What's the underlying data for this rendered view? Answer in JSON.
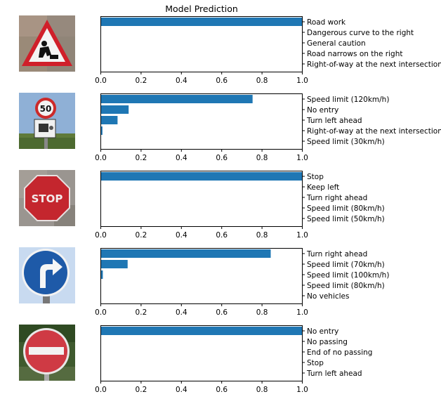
{
  "title": "Model Prediction",
  "chart_data": [
    {
      "type": "bar",
      "orientation": "horizontal",
      "image_icon": "road-work-sign-icon",
      "categories": [
        "Road work",
        "Dangerous curve to the right",
        "General caution",
        "Road narrows on the right",
        "Right-of-way at the next intersection"
      ],
      "values": [
        1.0,
        0.0,
        0.0,
        0.0,
        0.0
      ],
      "xlim": [
        0,
        1.0
      ],
      "xticks": [
        "0.0",
        "0.2",
        "0.4",
        "0.6",
        "0.8",
        "1.0"
      ]
    },
    {
      "type": "bar",
      "orientation": "horizontal",
      "image_icon": "speed-limit-50-sign-icon",
      "categories": [
        "Speed limit (120km/h)",
        "No entry",
        "Turn left ahead",
        "Right-of-way at the next intersection",
        "Speed limit (30km/h)"
      ],
      "values": [
        0.755,
        0.14,
        0.085,
        0.01,
        0.003
      ],
      "xlim": [
        0,
        1.0
      ],
      "xticks": [
        "0.0",
        "0.2",
        "0.4",
        "0.6",
        "0.8",
        "1.0"
      ]
    },
    {
      "type": "bar",
      "orientation": "horizontal",
      "image_icon": "stop-sign-icon",
      "categories": [
        "Stop",
        "Keep left",
        "Turn right ahead",
        "Speed limit (80km/h)",
        "Speed limit (50km/h)"
      ],
      "values": [
        1.0,
        0.0,
        0.0,
        0.0,
        0.0
      ],
      "xlim": [
        0,
        1.0
      ],
      "xticks": [
        "0.0",
        "0.2",
        "0.4",
        "0.6",
        "0.8",
        "1.0"
      ]
    },
    {
      "type": "bar",
      "orientation": "horizontal",
      "image_icon": "turn-right-ahead-sign-icon",
      "categories": [
        "Turn right ahead",
        "Speed limit (70km/h)",
        "Speed limit (100km/h)",
        "Speed limit (80km/h)",
        "No vehicles"
      ],
      "values": [
        0.845,
        0.135,
        0.012,
        0.002,
        0.001
      ],
      "xlim": [
        0,
        1.0
      ],
      "xticks": [
        "0.0",
        "0.2",
        "0.4",
        "0.6",
        "0.8",
        "1.0"
      ]
    },
    {
      "type": "bar",
      "orientation": "horizontal",
      "image_icon": "no-entry-sign-icon",
      "categories": [
        "No entry",
        "No passing",
        "End of no passing",
        "Stop",
        "Turn left ahead"
      ],
      "values": [
        1.0,
        0.0,
        0.0,
        0.0,
        0.0
      ],
      "xlim": [
        0,
        1.0
      ],
      "xticks": [
        "0.0",
        "0.2",
        "0.4",
        "0.6",
        "0.8",
        "1.0"
      ]
    }
  ],
  "colors": {
    "bar": "#1f77b4",
    "axis": "#000000"
  }
}
